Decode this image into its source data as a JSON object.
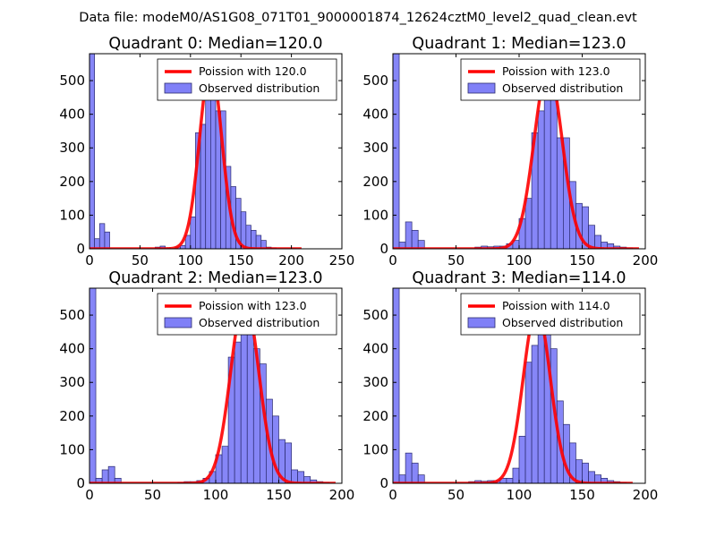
{
  "suptitle": "Data file: modeM0/AS1G08_071T01_9000001874_12624cztM0_level2_quad_clean.evt",
  "colors": {
    "bar_fill": "#8080f7",
    "bar_edge": "#2a2a6e",
    "fit_line": "#ff0000",
    "legend_edge": "#000000"
  },
  "chart_data": [
    {
      "type": "bar",
      "title": "Quadrant 0: Median=120.0",
      "xlim": [
        0,
        250
      ],
      "ylim": [
        0,
        580
      ],
      "xticks": [
        0,
        50,
        100,
        150,
        200,
        250
      ],
      "yticks": [
        0,
        100,
        200,
        300,
        400,
        500
      ],
      "bin_width": 5,
      "bins": [
        [
          0,
          590
        ],
        [
          5,
          30
        ],
        [
          10,
          75
        ],
        [
          15,
          50
        ],
        [
          65,
          5
        ],
        [
          70,
          8
        ],
        [
          75,
          3
        ],
        [
          85,
          5
        ],
        [
          90,
          10
        ],
        [
          95,
          40
        ],
        [
          100,
          95
        ],
        [
          105,
          345
        ],
        [
          110,
          370
        ],
        [
          115,
          500
        ],
        [
          120,
          545
        ],
        [
          125,
          410
        ],
        [
          130,
          410
        ],
        [
          135,
          245
        ],
        [
          140,
          185
        ],
        [
          145,
          150
        ],
        [
          150,
          110
        ],
        [
          155,
          70
        ],
        [
          160,
          55
        ],
        [
          165,
          40
        ],
        [
          170,
          25
        ],
        [
          175,
          5
        ],
        [
          180,
          3
        ],
        [
          200,
          1
        ]
      ],
      "fit_mean": 120.0,
      "fit_peak": 545,
      "fit_range": [
        0,
        210
      ],
      "legend": [
        "Poission with 120.0",
        "Observed distribution"
      ]
    },
    {
      "type": "bar",
      "title": "Quadrant 1: Median=123.0",
      "xlim": [
        0,
        200
      ],
      "ylim": [
        0,
        580
      ],
      "xticks": [
        0,
        50,
        100,
        150,
        200
      ],
      "yticks": [
        0,
        100,
        200,
        300,
        400,
        500
      ],
      "bin_width": 5,
      "bins": [
        [
          0,
          590
        ],
        [
          5,
          20
        ],
        [
          10,
          80
        ],
        [
          15,
          55
        ],
        [
          20,
          25
        ],
        [
          65,
          5
        ],
        [
          70,
          8
        ],
        [
          75,
          6
        ],
        [
          80,
          8
        ],
        [
          85,
          8
        ],
        [
          90,
          15
        ],
        [
          95,
          25
        ],
        [
          100,
          90
        ],
        [
          105,
          150
        ],
        [
          110,
          345
        ],
        [
          115,
          410
        ],
        [
          120,
          510
        ],
        [
          125,
          535
        ],
        [
          130,
          330
        ],
        [
          135,
          330
        ],
        [
          140,
          200
        ],
        [
          145,
          135
        ],
        [
          150,
          125
        ],
        [
          155,
          70
        ],
        [
          160,
          40
        ],
        [
          165,
          20
        ],
        [
          170,
          15
        ],
        [
          175,
          8
        ],
        [
          180,
          5
        ],
        [
          185,
          3
        ]
      ],
      "fit_mean": 123.0,
      "fit_peak": 535,
      "fit_range": [
        0,
        195
      ],
      "legend": [
        "Poission with 123.0",
        "Observed distribution"
      ]
    },
    {
      "type": "bar",
      "title": "Quadrant 2: Median=123.0",
      "xlim": [
        0,
        200
      ],
      "ylim": [
        0,
        580
      ],
      "xticks": [
        0,
        50,
        100,
        150,
        200
      ],
      "yticks": [
        0,
        100,
        200,
        300,
        400,
        500
      ],
      "bin_width": 5,
      "bins": [
        [
          0,
          590
        ],
        [
          5,
          15
        ],
        [
          10,
          40
        ],
        [
          15,
          50
        ],
        [
          20,
          15
        ],
        [
          70,
          3
        ],
        [
          75,
          5
        ],
        [
          80,
          5
        ],
        [
          85,
          8
        ],
        [
          90,
          15
        ],
        [
          95,
          35
        ],
        [
          100,
          85
        ],
        [
          105,
          110
        ],
        [
          110,
          375
        ],
        [
          115,
          420
        ],
        [
          120,
          495
        ],
        [
          125,
          550
        ],
        [
          130,
          400
        ],
        [
          135,
          355
        ],
        [
          140,
          250
        ],
        [
          145,
          200
        ],
        [
          150,
          130
        ],
        [
          155,
          120
        ],
        [
          160,
          40
        ],
        [
          165,
          35
        ],
        [
          170,
          20
        ],
        [
          175,
          10
        ],
        [
          180,
          5
        ],
        [
          185,
          3
        ]
      ],
      "fit_mean": 123.0,
      "fit_peak": 550,
      "fit_range": [
        0,
        195
      ],
      "legend": [
        "Poission with 123.0",
        "Observed distribution"
      ]
    },
    {
      "type": "bar",
      "title": "Quadrant 3: Median=114.0",
      "xlim": [
        0,
        200
      ],
      "ylim": [
        0,
        580
      ],
      "xticks": [
        0,
        50,
        100,
        150,
        200
      ],
      "yticks": [
        0,
        100,
        200,
        300,
        400,
        500
      ],
      "bin_width": 5,
      "bins": [
        [
          0,
          590
        ],
        [
          5,
          25
        ],
        [
          10,
          90
        ],
        [
          15,
          60
        ],
        [
          20,
          25
        ],
        [
          60,
          5
        ],
        [
          65,
          8
        ],
        [
          70,
          6
        ],
        [
          75,
          8
        ],
        [
          80,
          8
        ],
        [
          85,
          15
        ],
        [
          90,
          15
        ],
        [
          95,
          45
        ],
        [
          100,
          140
        ],
        [
          105,
          360
        ],
        [
          110,
          410
        ],
        [
          115,
          520
        ],
        [
          120,
          490
        ],
        [
          125,
          400
        ],
        [
          130,
          245
        ],
        [
          135,
          175
        ],
        [
          140,
          120
        ],
        [
          145,
          70
        ],
        [
          150,
          60
        ],
        [
          155,
          35
        ],
        [
          160,
          25
        ],
        [
          165,
          15
        ],
        [
          170,
          8
        ],
        [
          175,
          5
        ],
        [
          180,
          3
        ]
      ],
      "fit_mean": 114.0,
      "fit_peak": 520,
      "fit_range": [
        0,
        190
      ],
      "legend": [
        "Poission with 114.0",
        "Observed distribution"
      ]
    }
  ]
}
